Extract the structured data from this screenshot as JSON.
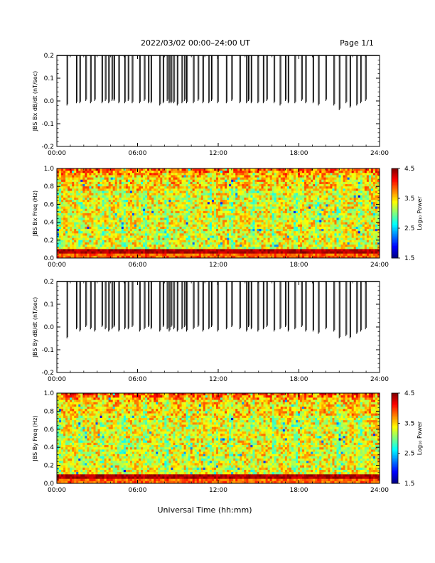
{
  "header": {
    "title": "2022/03/02  00:00–24:00 UT",
    "page": "Page 1/1"
  },
  "xlabel": "Universal Time (hh:mm)",
  "colorbar": {
    "label": "Log₁₀ Power",
    "ticks": [
      "4.5",
      "3.5",
      "2.5",
      "1.5"
    ],
    "range": [
      1.5,
      4.5
    ]
  },
  "chart_data": [
    {
      "type": "line",
      "ylabel": "JBS Bx dB/dt (nT/sec)",
      "xlim": [
        0,
        24
      ],
      "ylim": [
        -0.2,
        0.2
      ],
      "xticks": [
        "00:00",
        "06:00",
        "12:00",
        "18:00",
        "24:00"
      ],
      "yticks": [
        "0.2",
        "0.1",
        "0.0",
        "-0.1",
        "-0.2"
      ],
      "baseline": 0.2,
      "spikes_x": [
        0.75,
        1.45,
        1.7,
        2.15,
        2.5,
        2.8,
        3.35,
        3.6,
        3.85,
        4.1,
        4.25,
        4.6,
        5.05,
        5.3,
        5.6,
        6.15,
        6.5,
        6.8,
        7.0,
        7.65,
        7.9,
        8.2,
        8.35,
        8.5,
        8.7,
        8.95,
        9.3,
        9.5,
        9.65,
        10.15,
        10.5,
        10.85,
        11.3,
        11.5,
        11.95,
        12.6,
        13.0,
        13.6,
        14.1,
        14.25,
        14.45,
        14.95,
        15.35,
        15.6,
        16.15,
        16.6,
        17.0,
        17.2,
        17.7,
        18.2,
        18.5,
        19.05,
        19.45,
        20.0,
        20.6,
        21.0,
        21.5,
        21.8,
        22.3,
        22.6,
        22.95
      ],
      "spikes_min": [
        -0.02,
        -0.01,
        -0.01,
        0.0,
        -0.01,
        0.0,
        -0.01,
        0.0,
        -0.01,
        0.0,
        0.0,
        -0.01,
        -0.01,
        0.0,
        -0.01,
        -0.01,
        0.0,
        -0.01,
        -0.01,
        -0.02,
        -0.01,
        0.0,
        -0.01,
        -0.01,
        -0.01,
        -0.02,
        -0.01,
        0.0,
        -0.01,
        -0.01,
        0.0,
        -0.01,
        -0.01,
        0.0,
        -0.01,
        -0.01,
        0.0,
        -0.01,
        -0.01,
        0.0,
        -0.01,
        -0.01,
        -0.01,
        0.0,
        -0.01,
        -0.02,
        0.0,
        -0.01,
        -0.01,
        0.0,
        -0.01,
        -0.01,
        -0.02,
        0.0,
        -0.02,
        -0.04,
        -0.01,
        -0.03,
        -0.02,
        -0.01,
        0.0
      ]
    },
    {
      "type": "heatmap",
      "ylabel": "JBS Bx Freq (Hz)",
      "xlim": [
        0,
        24
      ],
      "ylim": [
        0.0,
        1.0
      ],
      "xticks": [
        "00:00",
        "06:00",
        "12:00",
        "18:00",
        "24:00"
      ],
      "yticks": [
        "1.0",
        "0.8",
        "0.6",
        "0.4",
        "0.2",
        "0.0"
      ],
      "power_range": [
        1.5,
        4.5
      ],
      "band_freq": 0.07
    },
    {
      "type": "line",
      "ylabel": "JBS By dB/dt (nT/sec)",
      "xlim": [
        0,
        24
      ],
      "ylim": [
        -0.2,
        0.2
      ],
      "xticks": [
        "00:00",
        "06:00",
        "12:00",
        "18:00",
        "24:00"
      ],
      "yticks": [
        "0.2",
        "0.1",
        "0.0",
        "-0.1",
        "-0.2"
      ],
      "baseline": 0.2,
      "spikes_x": [
        0.75,
        1.45,
        1.7,
        2.15,
        2.5,
        2.8,
        3.35,
        3.6,
        3.85,
        4.1,
        4.25,
        4.6,
        5.05,
        5.3,
        5.6,
        6.15,
        6.5,
        6.8,
        7.0,
        7.65,
        7.9,
        8.2,
        8.35,
        8.5,
        8.7,
        8.95,
        9.3,
        9.5,
        9.65,
        10.15,
        10.5,
        10.85,
        11.3,
        11.5,
        11.95,
        12.6,
        13.0,
        13.6,
        14.1,
        14.25,
        14.45,
        14.95,
        15.35,
        15.6,
        16.15,
        16.6,
        17.0,
        17.2,
        17.7,
        18.2,
        18.5,
        19.05,
        19.45,
        20.0,
        20.6,
        21.0,
        21.5,
        21.8,
        22.3,
        22.6,
        22.95
      ],
      "spikes_min": [
        -0.05,
        -0.01,
        -0.02,
        0.0,
        -0.01,
        -0.02,
        0.0,
        -0.01,
        -0.02,
        -0.01,
        0.0,
        -0.02,
        -0.01,
        -0.01,
        0.0,
        -0.02,
        -0.01,
        0.0,
        -0.01,
        -0.02,
        0.0,
        -0.01,
        -0.02,
        0.0,
        -0.01,
        -0.02,
        -0.01,
        0.0,
        -0.02,
        -0.01,
        0.0,
        -0.02,
        -0.01,
        0.0,
        -0.02,
        -0.01,
        0.0,
        -0.01,
        -0.02,
        0.0,
        -0.01,
        -0.02,
        -0.01,
        0.0,
        -0.02,
        -0.01,
        0.0,
        -0.02,
        -0.01,
        0.0,
        -0.02,
        -0.02,
        -0.03,
        -0.01,
        -0.02,
        -0.05,
        -0.04,
        -0.05,
        -0.03,
        -0.02,
        -0.01
      ]
    },
    {
      "type": "heatmap",
      "ylabel": "JBS By Freq (Hz)",
      "xlim": [
        0,
        24
      ],
      "ylim": [
        0.0,
        1.0
      ],
      "xticks": [
        "00:00",
        "06:00",
        "12:00",
        "18:00",
        "24:00"
      ],
      "yticks": [
        "1.0",
        "0.8",
        "0.6",
        "0.4",
        "0.2",
        "0.0"
      ],
      "power_range": [
        1.5,
        4.5
      ],
      "band_freq": 0.07
    }
  ]
}
